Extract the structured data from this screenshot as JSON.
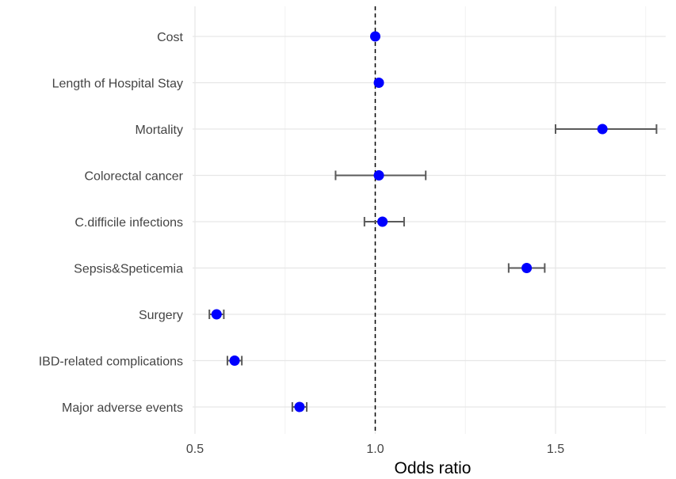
{
  "chart_data": {
    "type": "forest",
    "title": "",
    "xlabel": "Odds ratio",
    "ylabel": "",
    "xlim": [
      0.5,
      1.8
    ],
    "xticks": [
      0.5,
      1.0,
      1.5
    ],
    "reference_line": 1.0,
    "grid": true,
    "legend": "none",
    "point_color": "#0000ff",
    "errorbar_color": "#5a5a5a",
    "categories": [
      "Cost",
      "Length of Hospital Stay",
      "Mortality",
      "Colorectal cancer",
      "C.difficile infections",
      "Sepsis&Speticemia",
      "Surgery",
      "IBD-related complications",
      "Major adverse events"
    ],
    "estimates": [
      1.0,
      1.01,
      1.63,
      1.01,
      1.02,
      1.42,
      0.56,
      0.61,
      0.79
    ],
    "ci_lower": [
      null,
      null,
      1.5,
      0.89,
      0.97,
      1.37,
      0.54,
      0.59,
      0.77
    ],
    "ci_upper": [
      null,
      null,
      1.78,
      1.14,
      1.08,
      1.47,
      0.58,
      0.63,
      0.81
    ]
  }
}
